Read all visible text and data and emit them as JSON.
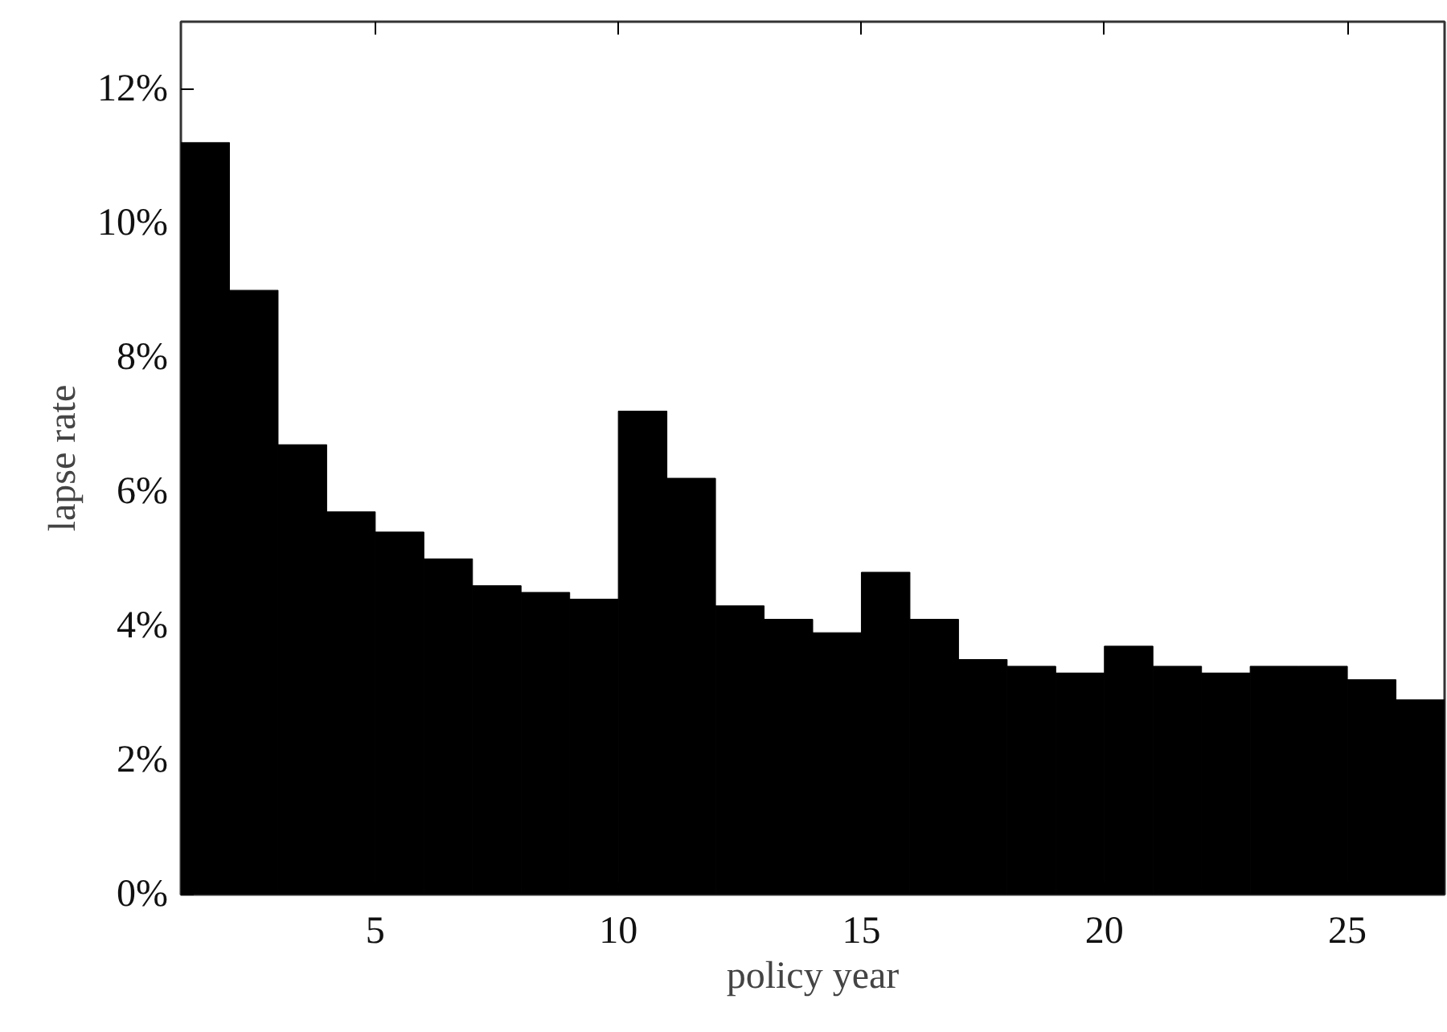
{
  "chart_data": {
    "type": "bar",
    "xlabel": "policy year",
    "ylabel": "lapse rate",
    "x": [
      1.5,
      2.5,
      3.5,
      4.5,
      5.5,
      6.5,
      7.5,
      8.5,
      9.5,
      10.5,
      11.5,
      12.5,
      13.5,
      14.5,
      15.5,
      16.5,
      17.5,
      18.5,
      19.5,
      20.5,
      21.5,
      22.5,
      23.5,
      24.5,
      25.5,
      26.5
    ],
    "values": [
      11.2,
      9.0,
      6.7,
      5.7,
      5.4,
      5.0,
      4.6,
      4.5,
      4.4,
      7.2,
      6.2,
      4.3,
      4.1,
      3.9,
      4.8,
      4.1,
      3.5,
      3.4,
      3.3,
      3.7,
      3.4,
      3.3,
      3.4,
      3.4,
      3.2,
      2.9
    ],
    "color": "#000000",
    "xlim": [
      1,
      27
    ],
    "ylim": [
      0,
      13
    ],
    "xticks": [
      5,
      10,
      15,
      20,
      25
    ],
    "yticks": [
      {
        "value": 0,
        "label": "0%"
      },
      {
        "value": 2,
        "label": "2%"
      },
      {
        "value": 4,
        "label": "4%"
      },
      {
        "value": 6,
        "label": "6%"
      },
      {
        "value": 8,
        "label": "8%"
      },
      {
        "value": 10,
        "label": "10%"
      },
      {
        "value": 12,
        "label": "12%"
      }
    ]
  }
}
